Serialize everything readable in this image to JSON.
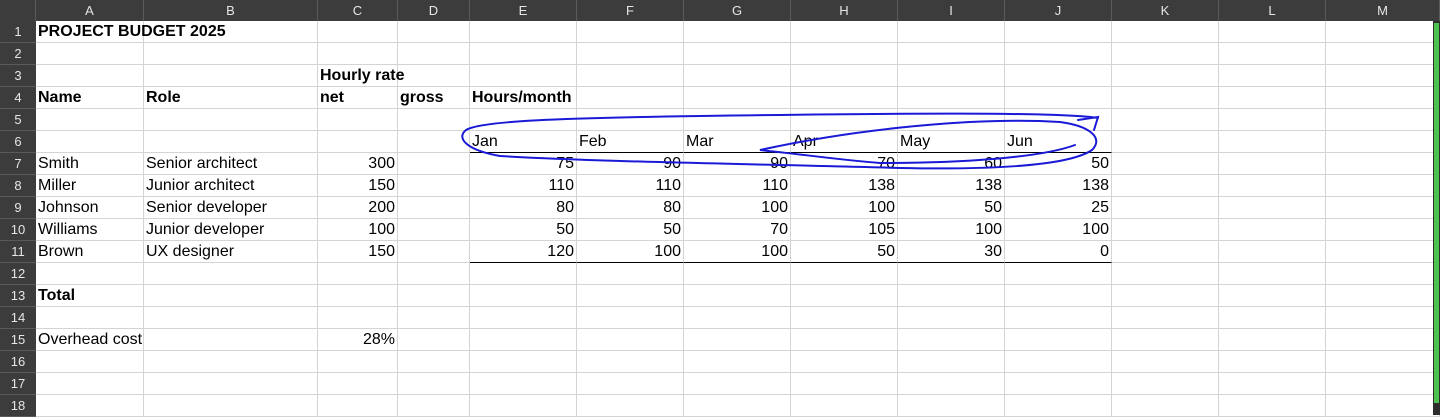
{
  "columns": [
    "A",
    "B",
    "C",
    "D",
    "E",
    "F",
    "G",
    "H",
    "I",
    "J",
    "K",
    "L",
    "M"
  ],
  "rows": [
    "1",
    "2",
    "3",
    "4",
    "5",
    "6",
    "7",
    "8",
    "9",
    "10",
    "11",
    "12",
    "13",
    "14",
    "15",
    "16",
    "17",
    "18"
  ],
  "title": "PROJECT BUDGET 2025",
  "header": {
    "hourly_rate": "Hourly rate",
    "name": "Name",
    "role": "Role",
    "net": "net",
    "gross": "gross",
    "hours_month": "Hours/month"
  },
  "months": [
    "Jan",
    "Feb",
    "Mar",
    "Apr",
    "May",
    "Jun"
  ],
  "staff": [
    {
      "name": "Smith",
      "role": "Senior architect",
      "net": "300",
      "hours": [
        "75",
        "90",
        "90",
        "70",
        "60",
        "50"
      ]
    },
    {
      "name": "Miller",
      "role": "Junior architect",
      "net": "150",
      "hours": [
        "110",
        "110",
        "110",
        "138",
        "138",
        "138"
      ]
    },
    {
      "name": "Johnson",
      "role": "Senior developer",
      "net": "200",
      "hours": [
        "80",
        "80",
        "100",
        "100",
        "50",
        "25"
      ]
    },
    {
      "name": "Williams",
      "role": "Junior developer",
      "net": "100",
      "hours": [
        "50",
        "50",
        "70",
        "105",
        "100",
        "100"
      ]
    },
    {
      "name": "Brown",
      "role": "UX designer",
      "net": "150",
      "hours": [
        "120",
        "100",
        "100",
        "50",
        "30",
        "0"
      ]
    }
  ],
  "total_label": "Total",
  "overhead": {
    "label": "Overhead cost",
    "value": "28%"
  },
  "colors": {
    "header_bg": "#3c3c3c",
    "grid": "#d4d4d4",
    "annotation": "#1a1ad6",
    "scroll_thumb": "#4ec24e"
  }
}
